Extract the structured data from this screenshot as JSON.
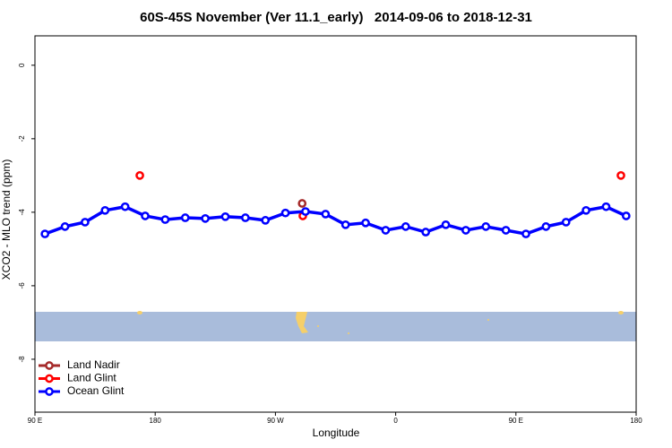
{
  "chart_data": {
    "type": "line",
    "title": "60S-45S November (Ver 11.1_early)   2014-09-06 to 2018-12-31",
    "x_label": "Longitude",
    "y_label": "XCO2 - MLO trend (ppm)",
    "xlim": [
      90,
      540
    ],
    "xticks": [
      {
        "value": 90,
        "label": "90 E"
      },
      {
        "value": 180,
        "label": "180"
      },
      {
        "value": 270,
        "label": "90 W"
      },
      {
        "value": 360,
        "label": "0"
      },
      {
        "value": 450,
        "label": "90 E"
      },
      {
        "value": 540,
        "label": "180"
      }
    ],
    "ylim": [
      -9.44,
      0.8
    ],
    "yticks": [
      0,
      -2,
      -4,
      -6,
      -8
    ],
    "legend": "bottom-left",
    "series": [
      {
        "name": "Land Nadir",
        "color": "#a52a2a",
        "line": false,
        "x": [
          290
        ],
        "values": [
          -3.76
        ]
      },
      {
        "name": "Land Glint",
        "color": "#ff0000",
        "line": false,
        "x": [
          168.5,
          290.5,
          528.6
        ],
        "values": [
          -3.0,
          -4.1,
          -3.0
        ]
      },
      {
        "name": "Ocean Glint",
        "color": "#0000ff",
        "line": true,
        "x": [
          97.5,
          112.5,
          127.5,
          142.5,
          157.5,
          172.5,
          187.5,
          202.5,
          217.5,
          232.5,
          247.5,
          262.5,
          277.5,
          292.5,
          307.5,
          322.5,
          337.5,
          352.5,
          367.5,
          382.5,
          397.5,
          412.5,
          427.5,
          442.5,
          457.5,
          472.5,
          487.5,
          502.5,
          517.5,
          532.5
        ],
        "values": [
          -4.59,
          -4.39,
          -4.27,
          -3.95,
          -3.85,
          -4.1,
          -4.2,
          -4.15,
          -4.17,
          -4.12,
          -4.15,
          -4.22,
          -4.02,
          -3.98,
          -4.05,
          -4.34,
          -4.29,
          -4.49,
          -4.39,
          -4.54,
          -4.34,
          -4.49,
          -4.39,
          -4.49,
          -4.59,
          -4.39,
          -4.27,
          -3.95,
          -3.85,
          -4.1
        ]
      }
    ]
  }
}
